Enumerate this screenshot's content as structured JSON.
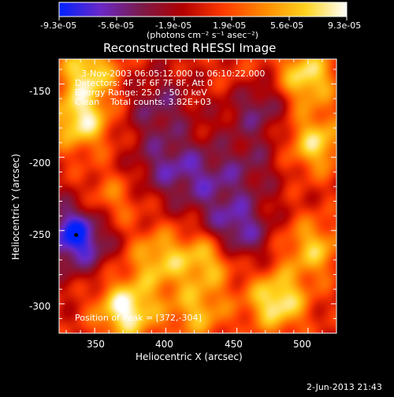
{
  "colorbar": {
    "tick_labels": [
      "-9.3e-05",
      "-5.6e-05",
      "-1.9e-05",
      "1.9e-05",
      "5.6e-05",
      "9.3e-05"
    ],
    "units_label": "(photons cm⁻² s⁻¹ asec⁻²)",
    "colors": [
      "#0022ff",
      "#6a28c8",
      "#7b1b4a",
      "#b20000",
      "#ff3a00",
      "#ff8a00",
      "#ffd41e",
      "#ffffff"
    ]
  },
  "plot": {
    "title": "Reconstructed RHESSI Image",
    "info_lines": [
      "3-Nov-2003 06:05:12.000 to 06:10:22.000",
      "Detectors: 4F 5F 6F 7F 8F, Att 0",
      "Energy Range: 25.0 - 50.0 keV",
      "Clean    Total counts: 3.82E+03"
    ],
    "position_text": "Position of Peak = [372,-304]",
    "xlabel": "Heliocentric X (arcsec)",
    "ylabel": "Heliocentric Y (arcsec)",
    "xticks": [
      "350",
      "400",
      "450",
      "500"
    ],
    "yticks": [
      "-150",
      "-200",
      "-250",
      "-300"
    ]
  },
  "footer": {
    "timestamp": "2-Jun-2013 21:43"
  },
  "chart_data": {
    "type": "heatmap",
    "title": "Reconstructed RHESSI Image",
    "xlabel": "Heliocentric X (arcsec)",
    "ylabel": "Heliocentric Y (arcsec)",
    "xlim": [
      325,
      520
    ],
    "ylim": [
      -320,
      -133
    ],
    "x_ticks": [
      350,
      400,
      450,
      500
    ],
    "y_ticks": [
      -150,
      -200,
      -250,
      -300
    ],
    "colorbar_range": [
      -9.3e-05,
      9.3e-05
    ],
    "peak_position": [
      372,
      -304
    ],
    "bright_sources": [
      {
        "x": 372,
        "y": -304,
        "value": 9.3e-05
      },
      {
        "x": 340,
        "y": -175,
        "value": 8e-05
      },
      {
        "x": 345,
        "y": -142,
        "value": 7.5e-05
      },
      {
        "x": 498,
        "y": -145,
        "value": 8e-05
      },
      {
        "x": 505,
        "y": -190,
        "value": 7e-05
      },
      {
        "x": 478,
        "y": -298,
        "value": 8.5e-05
      },
      {
        "x": 503,
        "y": -262,
        "value": 6e-05
      },
      {
        "x": 430,
        "y": -268,
        "value": 7e-05
      },
      {
        "x": 422,
        "y": -305,
        "value": 5.5e-05
      },
      {
        "x": 395,
        "y": -270,
        "value": 6e-05
      },
      {
        "x": 360,
        "y": -230,
        "value": 4e-05
      },
      {
        "x": 455,
        "y": -150,
        "value": 4e-05
      }
    ],
    "dark_sources": [
      {
        "x": 337,
        "y": -253,
        "value": -9.3e-05
      },
      {
        "x": 448,
        "y": -250,
        "value": -7e-05
      },
      {
        "x": 462,
        "y": -160,
        "value": -6.5e-05
      },
      {
        "x": 428,
        "y": -215,
        "value": -4e-05
      },
      {
        "x": 400,
        "y": -205,
        "value": -4.5e-05
      },
      {
        "x": 395,
        "y": -165,
        "value": -4e-05
      },
      {
        "x": 460,
        "y": -205,
        "value": -3e-05
      }
    ]
  }
}
